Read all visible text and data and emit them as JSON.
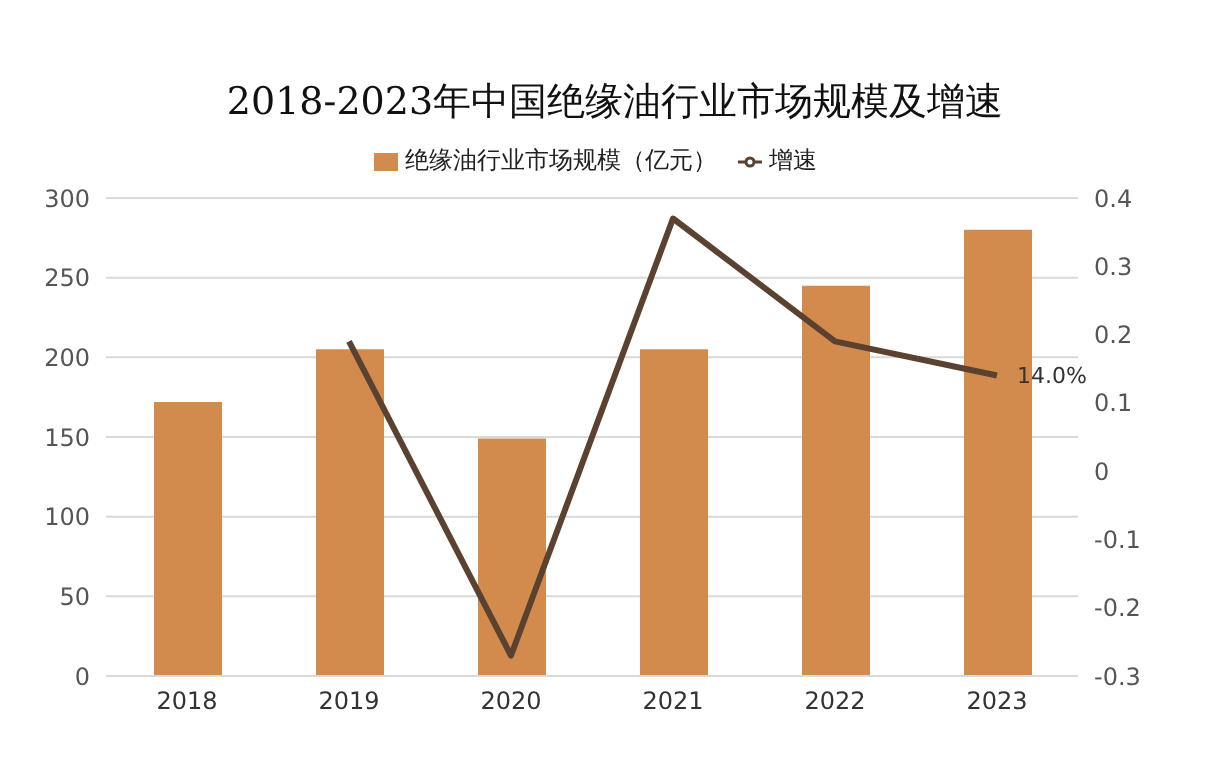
{
  "chart_data": {
    "type": "bar",
    "title": "2018-2023年中国绝缘油行业市场规模及增速",
    "categories": [
      "2018",
      "2019",
      "2020",
      "2021",
      "2022",
      "2023"
    ],
    "series": [
      {
        "name": "绝缘油行业市场规模（亿元）",
        "color": "#d38b4d",
        "values": [
          172,
          205,
          149,
          205,
          245,
          280
        ]
      },
      {
        "name": "增速",
        "type": "line",
        "axis": "y2",
        "color": "#5b4230",
        "values": [
          null,
          0.19,
          -0.27,
          0.37,
          0.19,
          0.14
        ],
        "value_labels": [
          null,
          null,
          null,
          null,
          null,
          "14.0%"
        ]
      }
    ],
    "ylim": [
      0,
      300
    ],
    "yticks": [
      0,
      50,
      100,
      150,
      200,
      250,
      300
    ],
    "y2lim": [
      -0.3,
      0.4
    ],
    "y2ticks": [
      {
        "value": -0.3,
        "label": "-0.3"
      },
      {
        "value": -0.2,
        "label": "-0.2"
      },
      {
        "value": -0.1,
        "label": "-0.1"
      },
      0,
      {
        "value": 0.1,
        "label": "0.1"
      },
      {
        "value": 0.2,
        "label": "0.2"
      },
      {
        "value": 0.3,
        "label": "0.3"
      },
      {
        "value": 0.4,
        "label": "0.4"
      }
    ],
    "grid": "y",
    "legend": "top",
    "marker": "none",
    "line_style": "solid"
  }
}
